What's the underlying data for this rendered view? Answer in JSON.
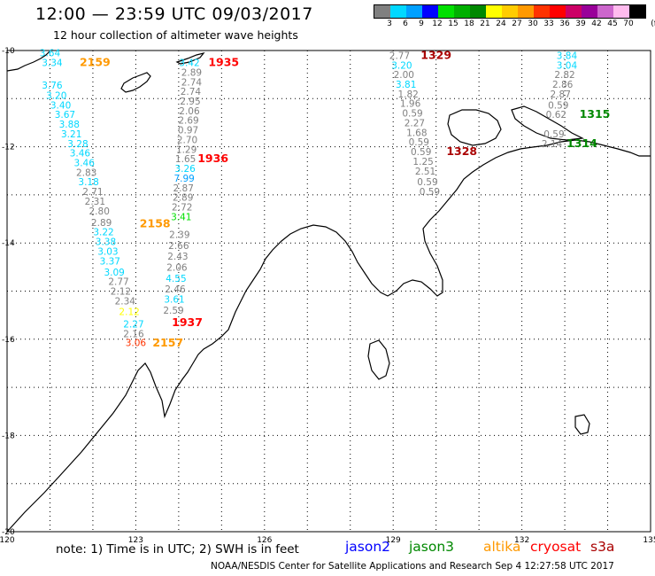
{
  "header": {
    "title": "12:00 — 23:59 UTC 09/03/2017",
    "subtitle": "12 hour collection of altimeter wave heights"
  },
  "color_scale": {
    "unit": "(ft)",
    "labels": [
      "3",
      "6",
      "9",
      "12",
      "15",
      "18",
      "21",
      "24",
      "27",
      "30",
      "33",
      "36",
      "39",
      "42",
      "45",
      "70"
    ],
    "colors": [
      "#808080",
      "#00d8ff",
      "#00a0ff",
      "#0000ff",
      "#00e000",
      "#00b000",
      "#008800",
      "#ffff00",
      "#ffcc00",
      "#ff9900",
      "#ff3300",
      "#ff0000",
      "#cc0066",
      "#990099",
      "#cc66cc",
      "#ffbbee",
      "#000000"
    ]
  },
  "axes": {
    "lon_labels": [
      "120",
      "123",
      "126",
      "129",
      "132",
      "135"
    ],
    "lat_labels": [
      "-10",
      "-12",
      "-14",
      "-16",
      "-18",
      "-20"
    ]
  },
  "observations": [
    {
      "t": "3.64",
      "lon": 121.0,
      "lat": -10.05,
      "c": "#00d8ff"
    },
    {
      "t": "3.34",
      "lon": 121.05,
      "lat": -10.25,
      "c": "#00d8ff"
    },
    {
      "t": "2159",
      "lon": 122.05,
      "lat": -10.25,
      "c": "#ff9900",
      "time": true
    },
    {
      "t": "3.76",
      "lon": 121.05,
      "lat": -10.72,
      "c": "#00d8ff"
    },
    {
      "t": "3.20",
      "lon": 121.15,
      "lat": -10.93,
      "c": "#00d8ff"
    },
    {
      "t": "3.40",
      "lon": 121.25,
      "lat": -11.13,
      "c": "#00d8ff"
    },
    {
      "t": "3.67",
      "lon": 121.35,
      "lat": -11.33,
      "c": "#00d8ff"
    },
    {
      "t": "3.88",
      "lon": 121.45,
      "lat": -11.53,
      "c": "#00d8ff"
    },
    {
      "t": "3.21",
      "lon": 121.5,
      "lat": -11.73,
      "c": "#00d8ff"
    },
    {
      "t": "3.28",
      "lon": 121.65,
      "lat": -11.93,
      "c": "#00d8ff"
    },
    {
      "t": "3.46",
      "lon": 121.7,
      "lat": -12.13,
      "c": "#00d8ff"
    },
    {
      "t": "3.46",
      "lon": 121.8,
      "lat": -12.33,
      "c": "#00d8ff"
    },
    {
      "t": "2.83",
      "lon": 121.85,
      "lat": -12.53,
      "c": "#808080"
    },
    {
      "t": "3.18",
      "lon": 121.9,
      "lat": -12.73,
      "c": "#00d8ff"
    },
    {
      "t": "2.71",
      "lon": 122.0,
      "lat": -12.93,
      "c": "#808080"
    },
    {
      "t": "2.31",
      "lon": 122.05,
      "lat": -13.13,
      "c": "#808080"
    },
    {
      "t": "2.80",
      "lon": 122.15,
      "lat": -13.33,
      "c": "#808080"
    },
    {
      "t": "2.89",
      "lon": 122.2,
      "lat": -13.57,
      "c": "#808080"
    },
    {
      "t": "3.22",
      "lon": 122.25,
      "lat": -13.77,
      "c": "#00d8ff"
    },
    {
      "t": "3.38",
      "lon": 122.3,
      "lat": -13.97,
      "c": "#00d8ff"
    },
    {
      "t": "3.03",
      "lon": 122.35,
      "lat": -14.17,
      "c": "#00d8ff"
    },
    {
      "t": "3.37",
      "lon": 122.4,
      "lat": -14.37,
      "c": "#00d8ff"
    },
    {
      "t": "3.09",
      "lon": 122.5,
      "lat": -14.6,
      "c": "#00d8ff"
    },
    {
      "t": "2.77",
      "lon": 122.6,
      "lat": -14.8,
      "c": "#808080"
    },
    {
      "t": "2.12",
      "lon": 122.65,
      "lat": -15.0,
      "c": "#808080"
    },
    {
      "t": "2.34",
      "lon": 122.75,
      "lat": -15.2,
      "c": "#808080"
    },
    {
      "t": "2.12",
      "lon": 122.85,
      "lat": -15.42,
      "c": "#ffff00"
    },
    {
      "t": "2.27",
      "lon": 122.95,
      "lat": -15.68,
      "c": "#00d8ff"
    },
    {
      "t": "2.16",
      "lon": 122.95,
      "lat": -15.88,
      "c": "#808080"
    },
    {
      "t": "3.06",
      "lon": 123.0,
      "lat": -16.07,
      "c": "#ff3300"
    },
    {
      "t": "2157",
      "lon": 123.75,
      "lat": -16.08,
      "c": "#ff9900",
      "time": true
    },
    {
      "t": "3.42",
      "lon": 124.25,
      "lat": -10.25,
      "c": "#00d8ff"
    },
    {
      "t": "1935",
      "lon": 125.05,
      "lat": -10.25,
      "c": "#ff0000",
      "time": true
    },
    {
      "t": "2.89",
      "lon": 124.3,
      "lat": -10.45,
      "c": "#808080"
    },
    {
      "t": "2.74",
      "lon": 124.3,
      "lat": -10.65,
      "c": "#808080"
    },
    {
      "t": "2.74",
      "lon": 124.28,
      "lat": -10.85,
      "c": "#808080"
    },
    {
      "t": "2.95",
      "lon": 124.27,
      "lat": -11.05,
      "c": "#808080"
    },
    {
      "t": "2.06",
      "lon": 124.25,
      "lat": -11.25,
      "c": "#808080"
    },
    {
      "t": "2.69",
      "lon": 124.23,
      "lat": -11.45,
      "c": "#808080"
    },
    {
      "t": "0.97",
      "lon": 124.22,
      "lat": -11.65,
      "c": "#808080"
    },
    {
      "t": "2.70",
      "lon": 124.2,
      "lat": -11.85,
      "c": "#808080"
    },
    {
      "t": "1.29",
      "lon": 124.18,
      "lat": -12.05,
      "c": "#808080"
    },
    {
      "t": "1.65",
      "lon": 124.16,
      "lat": -12.25,
      "c": "#808080"
    },
    {
      "t": "1936",
      "lon": 124.8,
      "lat": -12.25,
      "c": "#ff0000",
      "time": true
    },
    {
      "t": "3.26",
      "lon": 124.15,
      "lat": -12.45,
      "c": "#00d8ff"
    },
    {
      "t": "7.99",
      "lon": 124.13,
      "lat": -12.65,
      "c": "#00a0ff"
    },
    {
      "t": "2.87",
      "lon": 124.11,
      "lat": -12.85,
      "c": "#808080"
    },
    {
      "t": "2.89",
      "lon": 124.1,
      "lat": -13.05,
      "c": "#808080"
    },
    {
      "t": "2.72",
      "lon": 124.08,
      "lat": -13.25,
      "c": "#808080"
    },
    {
      "t": "3.41",
      "lon": 124.06,
      "lat": -13.45,
      "c": "#00e000"
    },
    {
      "t": "2158",
      "lon": 123.45,
      "lat": -13.6,
      "c": "#ff9900",
      "time": true
    },
    {
      "t": "2.39",
      "lon": 124.02,
      "lat": -13.82,
      "c": "#808080"
    },
    {
      "t": "2.66",
      "lon": 124.0,
      "lat": -14.05,
      "c": "#808080"
    },
    {
      "t": "2.43",
      "lon": 123.98,
      "lat": -14.27,
      "c": "#808080"
    },
    {
      "t": "2.06",
      "lon": 123.96,
      "lat": -14.5,
      "c": "#808080"
    },
    {
      "t": "4.55",
      "lon": 123.94,
      "lat": -14.73,
      "c": "#00d8ff"
    },
    {
      "t": "2.46",
      "lon": 123.92,
      "lat": -14.95,
      "c": "#808080"
    },
    {
      "t": "3.61",
      "lon": 123.9,
      "lat": -15.17,
      "c": "#00d8ff"
    },
    {
      "t": "2.59",
      "lon": 123.88,
      "lat": -15.4,
      "c": "#808080"
    },
    {
      "t": "1937",
      "lon": 124.2,
      "lat": -15.65,
      "c": "#ff0000",
      "time": true
    },
    {
      "t": "2.77",
      "lon": 129.15,
      "lat": -10.1,
      "c": "#808080"
    },
    {
      "t": "1329",
      "lon": 130.0,
      "lat": -10.1,
      "c": "#aa0000",
      "time": true
    },
    {
      "t": "3.20",
      "lon": 129.2,
      "lat": -10.3,
      "c": "#00d8ff"
    },
    {
      "t": "2.00",
      "lon": 129.25,
      "lat": -10.5,
      "c": "#808080"
    },
    {
      "t": "3.81",
      "lon": 129.3,
      "lat": -10.7,
      "c": "#00d8ff"
    },
    {
      "t": "1.82",
      "lon": 129.35,
      "lat": -10.9,
      "c": "#808080"
    },
    {
      "t": "1.96",
      "lon": 129.4,
      "lat": -11.1,
      "c": "#808080"
    },
    {
      "t": "0.59",
      "lon": 129.45,
      "lat": -11.3,
      "c": "#808080"
    },
    {
      "t": "2.27",
      "lon": 129.5,
      "lat": -11.5,
      "c": "#808080"
    },
    {
      "t": "1.68",
      "lon": 129.55,
      "lat": -11.7,
      "c": "#808080"
    },
    {
      "t": "0.59",
      "lon": 129.6,
      "lat": -11.9,
      "c": "#808080"
    },
    {
      "t": "0.59",
      "lon": 129.65,
      "lat": -12.1,
      "c": "#808080"
    },
    {
      "t": "1328",
      "lon": 130.6,
      "lat": -12.1,
      "c": "#aa0000",
      "time": true
    },
    {
      "t": "1.25",
      "lon": 129.7,
      "lat": -12.3,
      "c": "#808080"
    },
    {
      "t": "2.51",
      "lon": 129.75,
      "lat": -12.5,
      "c": "#808080"
    },
    {
      "t": "0.59",
      "lon": 129.8,
      "lat": -12.73,
      "c": "#808080"
    },
    {
      "t": "0.59",
      "lon": 129.85,
      "lat": -12.93,
      "c": "#808080"
    },
    {
      "t": "3.84",
      "lon": 133.05,
      "lat": -10.1,
      "c": "#00d8ff"
    },
    {
      "t": "3.04",
      "lon": 133.05,
      "lat": -10.3,
      "c": "#00d8ff"
    },
    {
      "t": "2.82",
      "lon": 133.0,
      "lat": -10.5,
      "c": "#808080"
    },
    {
      "t": "2.86",
      "lon": 132.95,
      "lat": -10.7,
      "c": "#808080"
    },
    {
      "t": "2.87",
      "lon": 132.9,
      "lat": -10.9,
      "c": "#808080"
    },
    {
      "t": "0.59",
      "lon": 132.85,
      "lat": -11.13,
      "c": "#808080"
    },
    {
      "t": "0.62",
      "lon": 132.8,
      "lat": -11.33,
      "c": "#808080"
    },
    {
      "t": "1315",
      "lon": 133.7,
      "lat": -11.33,
      "c": "#008800",
      "time": true
    },
    {
      "t": "0.59",
      "lon": 132.75,
      "lat": -11.73,
      "c": "#808080"
    },
    {
      "t": "2.14",
      "lon": 132.7,
      "lat": -11.93,
      "c": "#808080"
    },
    {
      "t": "1314",
      "lon": 133.4,
      "lat": -11.93,
      "c": "#008800",
      "time": true
    }
  ],
  "legend": {
    "note": "note:  1) Time is in UTC;  2) SWH is in feet",
    "satellites": [
      {
        "name": "jason2",
        "color": "#0000ff"
      },
      {
        "name": "jason3",
        "color": "#008800"
      },
      {
        "name": "altika",
        "color": "#ff9900"
      },
      {
        "name": "cryosat",
        "color": "#ff0000"
      },
      {
        "name": "s3a",
        "color": "#aa0000"
      }
    ]
  },
  "credit": "NOAA/NESDIS Center for Satellite Applications and Research    Sep  4 12:27:58 UTC 2017"
}
